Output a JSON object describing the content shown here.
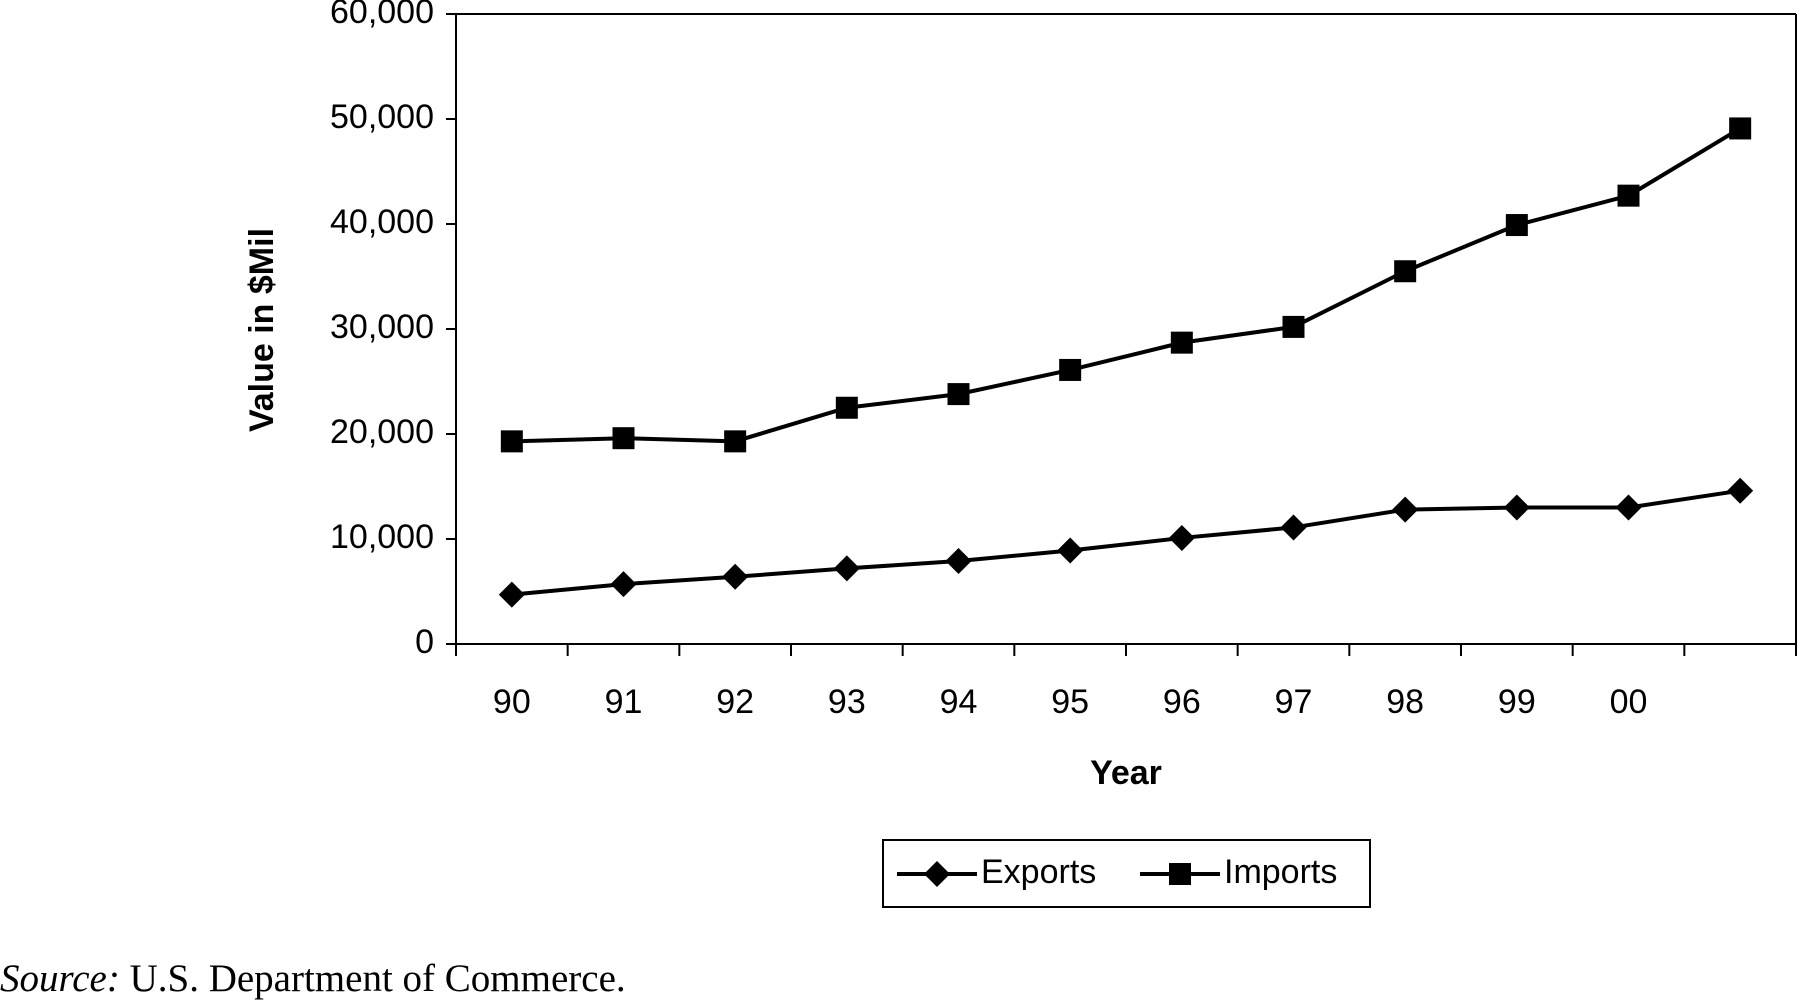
{
  "chart_data": {
    "type": "line",
    "ylabel": "Value in $Mil",
    "xlabel": "Year",
    "categories": [
      "90",
      "91",
      "92",
      "93",
      "94",
      "95",
      "96",
      "97",
      "98",
      "99",
      "00",
      null
    ],
    "series": [
      {
        "name": "Exports",
        "color": "#000000",
        "marker": "diamond",
        "values": [
          4700,
          5700,
          6400,
          7200,
          7900,
          8900,
          10100,
          11100,
          12800,
          13000,
          13000,
          14600
        ]
      },
      {
        "name": "Imports",
        "color": "#000000",
        "marker": "square",
        "values": [
          19300,
          19600,
          19300,
          22500,
          23800,
          26100,
          28700,
          30200,
          35500,
          39900,
          42700,
          49100
        ]
      }
    ],
    "ylim": [
      0,
      60000
    ],
    "yticks": [
      0,
      {
        "value": 10000,
        "label": "10,000"
      },
      {
        "value": 20000,
        "label": "20,000"
      },
      {
        "value": 30000,
        "label": "30,000"
      },
      {
        "value": 40000,
        "label": "40,000"
      },
      {
        "value": 50000,
        "label": "50,000"
      },
      {
        "value": 60000,
        "label": "60,000"
      }
    ],
    "grid": false,
    "legend": "bottom"
  },
  "source": {
    "label": "Source:",
    "text": "U.S. Department of Commerce."
  }
}
